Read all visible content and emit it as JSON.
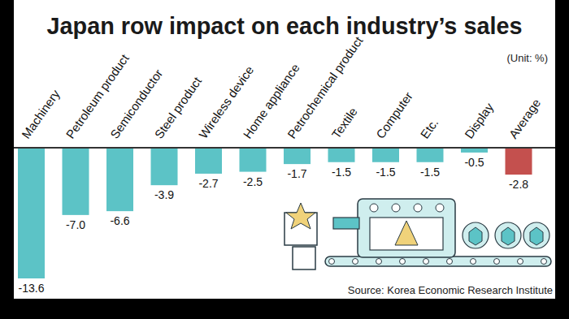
{
  "chart_data": {
    "type": "bar",
    "title": "Japan row impact on each industry’s sales",
    "subtitle": "(Unit: %)",
    "source": "Source:  Korea Economic Research Institute",
    "categories": [
      "Machinery",
      "Petroleum product",
      "Semiconductor",
      "Steel product",
      "Wireless device",
      "Home appliance",
      "Petrochemical product",
      "Textile",
      "Computer",
      "Etc.",
      "Display",
      "Average"
    ],
    "values": [
      -13.6,
      -7.0,
      -6.6,
      -3.9,
      -2.7,
      -2.5,
      -1.7,
      -1.5,
      -1.5,
      -1.5,
      -0.5,
      -2.8
    ],
    "value_labels": [
      "-13.6",
      "-7.0",
      "-6.6",
      "-3.9",
      "-2.7",
      "-2.5",
      "-1.7",
      "-1.5",
      "-1.5",
      "-1.5",
      "-0.5",
      "-2.8"
    ],
    "colors": [
      "#5cc3c6",
      "#5cc3c6",
      "#5cc3c6",
      "#5cc3c6",
      "#5cc3c6",
      "#5cc3c6",
      "#5cc3c6",
      "#5cc3c6",
      "#5cc3c6",
      "#5cc3c6",
      "#5cc3c6",
      "#c4504e"
    ],
    "ylim": [
      -13.6,
      0
    ],
    "data_labels": true,
    "tick_labels": "x",
    "grid": false
  }
}
